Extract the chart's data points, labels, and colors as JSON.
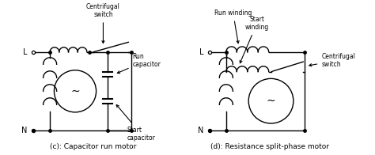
{
  "bg_color": "#ffffff",
  "line_color": "#000000",
  "title_c": "(c): Capacitor run motor",
  "title_d": "(d): Resistance split-phase motor",
  "label_L": "L",
  "label_N": "N",
  "ann_centrifugal_c": "Centrifugal\nswitch",
  "ann_run_cap": "Run\ncapacitor",
  "ann_start_cap": "Start\ncapacitor",
  "ann_run_winding": "Run winding",
  "ann_start_winding": "Start\nwinding",
  "ann_centrifugal_d": "Centrifugal\nswitch",
  "font_size_label": 7,
  "font_size_ann": 5.5,
  "font_size_title": 6.5,
  "font_size_tilde": 10
}
